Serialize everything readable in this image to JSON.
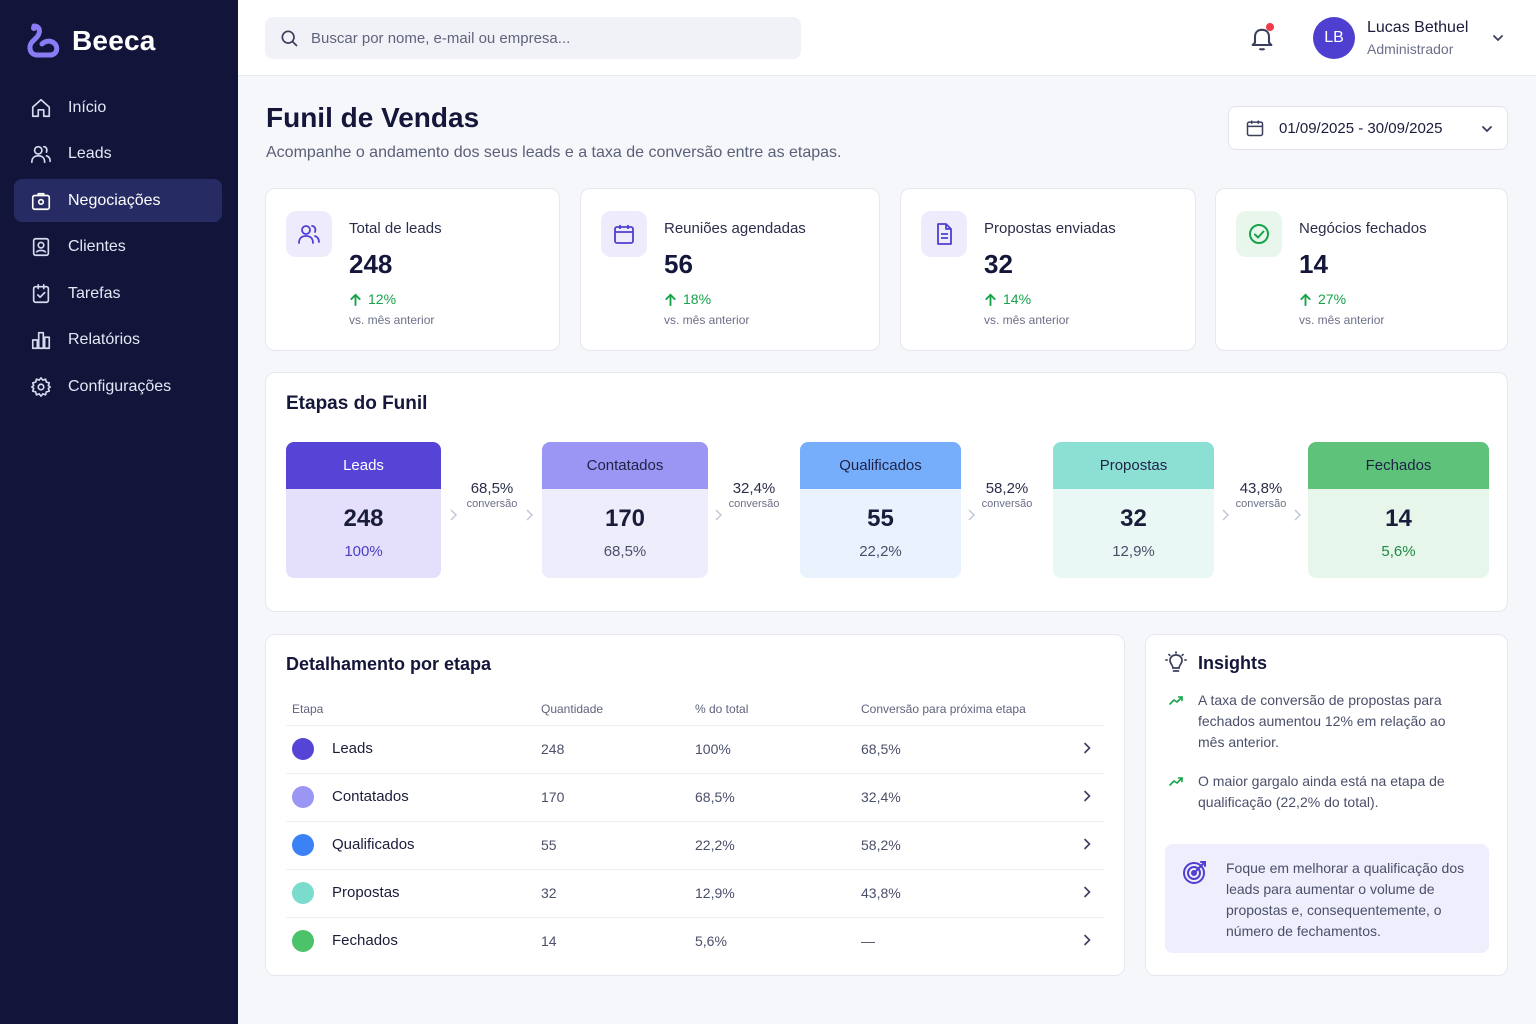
{
  "app": {
    "name": "Beeca"
  },
  "sidebar": {
    "items": [
      {
        "label": "Início",
        "icon": "home-icon"
      },
      {
        "label": "Leads",
        "icon": "users-icon"
      },
      {
        "label": "Negociações",
        "icon": "briefcase-icon",
        "active": true
      },
      {
        "label": "Clientes",
        "icon": "contact-icon"
      },
      {
        "label": "Tarefas",
        "icon": "task-icon"
      },
      {
        "label": "Relatórios",
        "icon": "chart-icon"
      },
      {
        "label": "Configurações",
        "icon": "gear-icon"
      }
    ]
  },
  "search": {
    "placeholder": "Buscar por nome, e-mail ou empresa..."
  },
  "user": {
    "initials": "LB",
    "name": "Lucas Bethuel",
    "role": "Administrador"
  },
  "header": {
    "title": "Funil de Vendas",
    "subtitle": "Acompanhe o andamento dos seus leads e a taxa de conversão entre as etapas.",
    "date_range": "01/09/2025 - 30/09/2025"
  },
  "stats": [
    {
      "label": "Total de leads",
      "value": "248",
      "delta": "12%",
      "note": "vs. mês anterior",
      "icon": "users-icon"
    },
    {
      "label": "Reuniões agendadas",
      "value": "56",
      "delta": "18%",
      "note": "vs. mês anterior",
      "icon": "calendar-icon"
    },
    {
      "label": "Propostas enviadas",
      "value": "32",
      "delta": "14%",
      "note": "vs. mês anterior",
      "icon": "document-icon"
    },
    {
      "label": "Negócios fechados",
      "value": "14",
      "delta": "27%",
      "note": "vs. mês anterior",
      "icon": "check-circle-icon"
    }
  ],
  "funnel": {
    "title": "Etapas do Funil",
    "stages": [
      {
        "name": "Leads",
        "value": "248",
        "pct": "100%",
        "head_color": "#5644d6",
        "body_color": "#e4e0fb",
        "head_text": "#ffffff",
        "pct_color": "#4b3dc7"
      },
      {
        "name": "Contatados",
        "value": "170",
        "pct": "68,5%",
        "head_color": "#9b96f3",
        "body_color": "#eeedfc",
        "head_text": "#1f2247",
        "pct_color": "#4a4f6a"
      },
      {
        "name": "Qualificados",
        "value": "55",
        "pct": "22,2%",
        "head_color": "#77aefb",
        "body_color": "#eaf2fe",
        "head_text": "#1f2247",
        "pct_color": "#4a4f6a"
      },
      {
        "name": "Propostas",
        "value": "32",
        "pct": "12,9%",
        "head_color": "#8ce0d3",
        "body_color": "#eaf8f5",
        "head_text": "#1f2247",
        "pct_color": "#4a4f6a"
      },
      {
        "name": "Fechados",
        "value": "14",
        "pct": "5,6%",
        "head_color": "#5ec27a",
        "body_color": "#e6f6ea",
        "head_text": "#1f2247",
        "pct_color": "#1f8a43"
      }
    ],
    "conversions": [
      {
        "value": "68,5%",
        "label": "conversão"
      },
      {
        "value": "32,4%",
        "label": "conversão"
      },
      {
        "value": "58,2%",
        "label": "conversão"
      },
      {
        "value": "43,8%",
        "label": "conversão"
      }
    ]
  },
  "details": {
    "title": "Detalhamento por etapa",
    "columns": [
      "Etapa",
      "Quantidade",
      "% do total",
      "Conversão para próxima etapa"
    ],
    "rows": [
      {
        "stage": "Leads",
        "qty": "248",
        "pct": "100%",
        "conv": "68,5%",
        "color": "#5644d6"
      },
      {
        "stage": "Contatados",
        "qty": "170",
        "pct": "68,5%",
        "conv": "32,4%",
        "color": "#9b96f3"
      },
      {
        "stage": "Qualificados",
        "qty": "55",
        "pct": "22,2%",
        "conv": "58,2%",
        "color": "#3b82f6"
      },
      {
        "stage": "Propostas",
        "qty": "32",
        "pct": "12,9%",
        "conv": "43,8%",
        "color": "#79dccc"
      },
      {
        "stage": "Fechados",
        "qty": "14",
        "pct": "5,6%",
        "conv": "—",
        "color": "#4cc26a"
      }
    ]
  },
  "insights": {
    "title": "Insights",
    "items": [
      {
        "text": "A taxa de conversão de propostas para fechados aumentou 12% em relação ao mês anterior."
      },
      {
        "text": "O maior gargalo ainda está na etapa de qualificação (22,2% do total)."
      }
    ],
    "tip": "Foque em melhorar a qualificação dos leads para aumentar o volume de propostas e, consequentemente, o número de fechamentos."
  },
  "colors": {
    "accent": "#4e3fd1",
    "sidebar": "#121539",
    "positive": "#16a34a",
    "notification": "#ef3b4a"
  }
}
